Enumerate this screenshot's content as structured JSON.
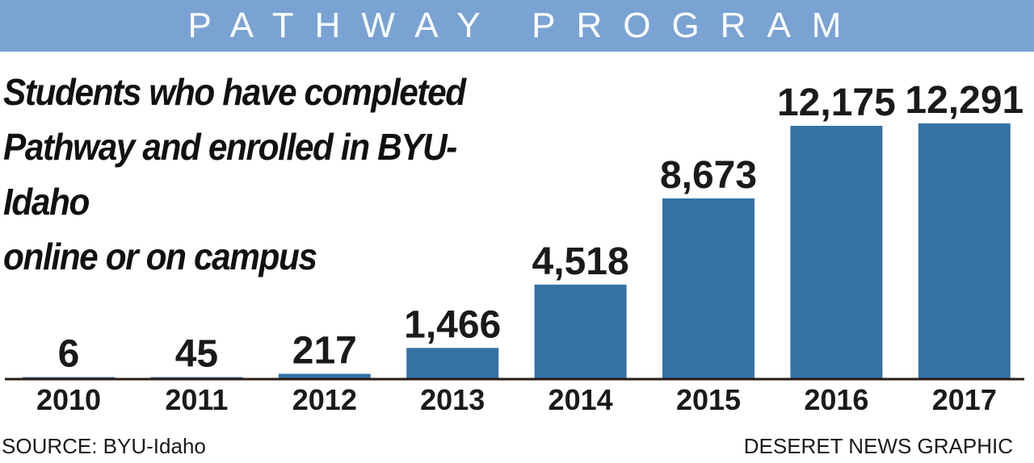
{
  "banner": {
    "title": "PATHWAY PROGRAM"
  },
  "headline": {
    "lines": [
      "Students who have completed",
      "Pathway and enrolled in BYU-Idaho",
      "online or on campus"
    ]
  },
  "chart_data": {
    "type": "bar",
    "title": "Students who have completed Pathway and enrolled in BYU-Idaho online or on campus",
    "categories": [
      "2010",
      "2011",
      "2012",
      "2013",
      "2014",
      "2015",
      "2016",
      "2017"
    ],
    "values": [
      6,
      45,
      217,
      1466,
      4518,
      8673,
      12175,
      12291
    ],
    "value_labels": [
      "6",
      "45",
      "217",
      "1,466",
      "4,518",
      "8,673",
      "12,175",
      "12,291"
    ],
    "xlabel": "",
    "ylabel": "",
    "ylim": [
      0,
      12291
    ],
    "grid": false,
    "legend": "none",
    "bar_color": "#3572a5",
    "axis_color": "#2a1a10"
  },
  "footer": {
    "source": "SOURCE: BYU-Idaho",
    "credit": "DESERET NEWS GRAPHIC"
  },
  "colors": {
    "banner_background": "#7aa3d4",
    "banner_text": "#ffffff",
    "bar": "#3572a5",
    "text": "#111111"
  }
}
